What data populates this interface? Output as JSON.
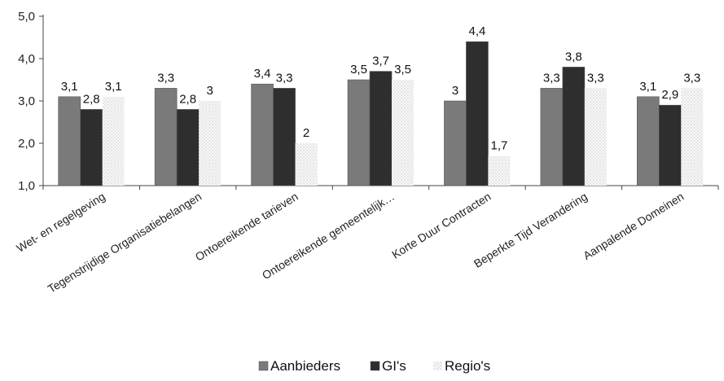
{
  "chart_data": {
    "type": "bar",
    "categories": [
      "Wet- en regelgeving",
      "Tegenstrijdige Organisatiebelangen",
      "Ontoereikende tarieven",
      "Ontoereikende gemeentelijk…",
      "Korte Duur Contracten",
      "Beperkte Tijd Verandering",
      "Aanpalende Domeinen"
    ],
    "series": [
      {
        "name": "Aanbieders",
        "values": [
          3.1,
          3.3,
          3.4,
          3.5,
          3.0,
          3.3,
          3.1
        ],
        "labels": [
          "3,1",
          "3,3",
          "3,4",
          "3,5",
          "3",
          "3,3",
          "3,1"
        ]
      },
      {
        "name": "GI's",
        "values": [
          2.8,
          2.8,
          3.3,
          3.7,
          4.4,
          3.8,
          2.9
        ],
        "labels": [
          "2,8",
          "2,8",
          "3,3",
          "3,7",
          "4,4",
          "3,8",
          "2,9"
        ]
      },
      {
        "name": "Regio's",
        "values": [
          3.1,
          3.0,
          2.0,
          3.5,
          1.7,
          3.3,
          3.3
        ],
        "labels": [
          "3,1",
          "3",
          "2",
          "3,5",
          "1,7",
          "3,3",
          "3,3"
        ]
      }
    ],
    "ylim": [
      1.0,
      5.0
    ],
    "yticks": [
      1.0,
      2.0,
      3.0,
      4.0,
      5.0
    ],
    "ytick_labels": [
      "1,0",
      "2,0",
      "3,0",
      "4,0",
      "5,0"
    ],
    "xlabel": "",
    "ylabel": "",
    "grid": false,
    "legend": "bottom",
    "colors": {
      "Aanbieders": "#7a7a7a",
      "GI's": "#2e2e2e",
      "Regio's": "#f3f3f3"
    }
  }
}
